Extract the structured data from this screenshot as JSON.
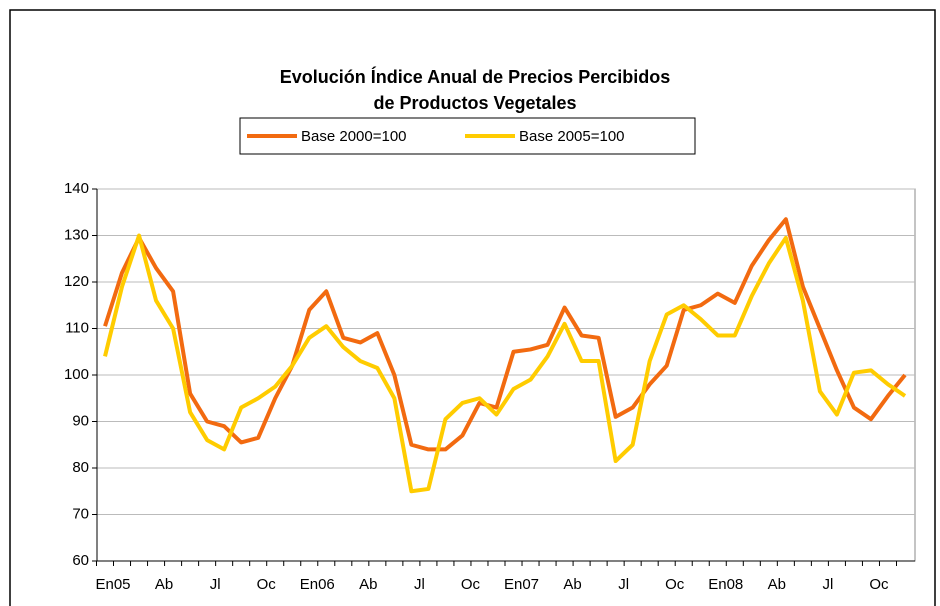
{
  "chart_data": {
    "type": "line",
    "title": [
      "Evolución Índice Anual de Precios Percibidos",
      "de Productos Vegetales"
    ],
    "categories": [
      "En05",
      null,
      null,
      "Ab",
      null,
      null,
      "Jl",
      null,
      null,
      "Oc",
      null,
      null,
      "En06",
      null,
      null,
      "Ab",
      null,
      null,
      "Jl",
      null,
      null,
      "Oc",
      null,
      null,
      "En07",
      null,
      null,
      "Ab",
      null,
      null,
      "Jl",
      null,
      null,
      "Oc",
      null,
      null,
      "En08",
      null,
      null,
      "Ab",
      null,
      null,
      "Jl",
      null,
      null,
      "Oc",
      null,
      null
    ],
    "series": [
      {
        "name": "Base 2000=100",
        "color": "#f26a10",
        "values": [
          110.5,
          122,
          129.5,
          123,
          118,
          96,
          90,
          89,
          85.5,
          86.5,
          95,
          102,
          114,
          118,
          108,
          107,
          109,
          100,
          85,
          84,
          84,
          87,
          94,
          93,
          105,
          105.5,
          106.5,
          114.5,
          108.5,
          108,
          91,
          93,
          98,
          102,
          114,
          115,
          117.5,
          115.5,
          123.5,
          129,
          133.5,
          119,
          110,
          101,
          93,
          90.5,
          95.5,
          100
        ]
      },
      {
        "name": "Base 2005=100",
        "color": "#ffcc00",
        "values": [
          104,
          119,
          130,
          116,
          110,
          92,
          86,
          84,
          93,
          95,
          97.5,
          102,
          108,
          110.5,
          106,
          103,
          101.5,
          95,
          75,
          75.5,
          90.5,
          94,
          95,
          91.5,
          97,
          99,
          104,
          111,
          103,
          103,
          81.5,
          85,
          103,
          113,
          115,
          112,
          108.5,
          108.5,
          117,
          124,
          129.5,
          116,
          96.5,
          91.5,
          100.5,
          101,
          98,
          95.5
        ]
      }
    ],
    "ylim": [
      60,
      140
    ],
    "yticks": [
      60,
      70,
      80,
      90,
      100,
      110,
      120,
      130,
      140
    ],
    "grid": true
  }
}
